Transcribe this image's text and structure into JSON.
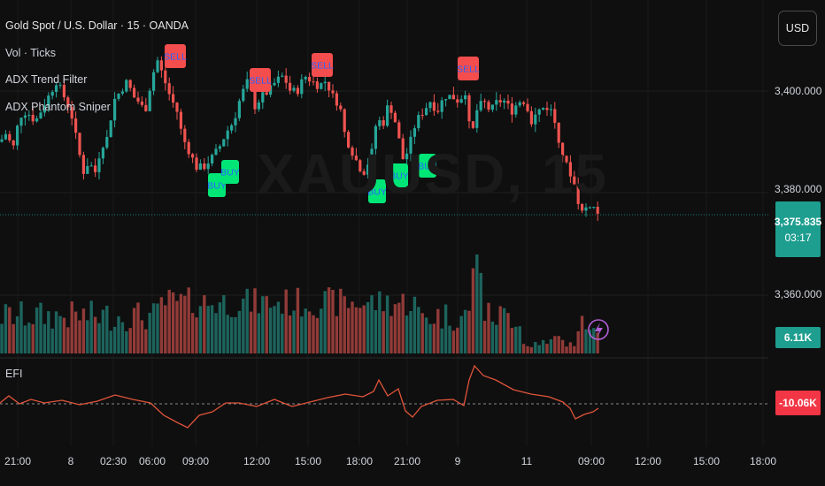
{
  "legend": {
    "symbol": "Gold Spot / U.S. Dollar · 15 · OANDA",
    "vol": "Vol · Ticks",
    "adx_trend": "ADX Trend Filter",
    "adx_sniper": "ADX Phantom Sniper"
  },
  "currency_button": "USD",
  "watermark": "XAUUSD, 15",
  "efi_label": "EFI",
  "colors": {
    "up": "#26a69a",
    "down": "#ef5350",
    "buy_label": "#00e676",
    "sell_label": "#f44d4d",
    "efi_line": "#e0543b"
  },
  "chart_data": {
    "type": "candlestick",
    "price_axis": {
      "labels": [
        "3,400.000",
        "3,380.000",
        "3,360.000"
      ],
      "values": [
        3400,
        3380,
        3360
      ]
    },
    "last_price": {
      "value": "3,375.835",
      "countdown": "03:17"
    },
    "volume_badge": "6.11K",
    "efi_badge": "-10.06K",
    "time_axis": {
      "labels": [
        "21:00",
        "8",
        "02:30",
        "06:00",
        "09:00",
        "12:00",
        "15:00",
        "18:00",
        "21:00",
        "9",
        "11",
        "09:00",
        "12:00",
        "15:00",
        "18:00"
      ]
    },
    "signals": [
      {
        "type": "SELL",
        "text": "SELL"
      },
      {
        "type": "SELL",
        "text": "SELL"
      },
      {
        "type": "SELL",
        "text": "SELL"
      },
      {
        "type": "SELL",
        "text": "SELL"
      },
      {
        "type": "BUY",
        "text": "BUY"
      },
      {
        "type": "BUY",
        "text": "BUY"
      },
      {
        "type": "BUY",
        "text": "BUY"
      },
      {
        "type": "BUY",
        "text": "BUY"
      },
      {
        "type": "BUY",
        "text": "BUY"
      }
    ]
  }
}
